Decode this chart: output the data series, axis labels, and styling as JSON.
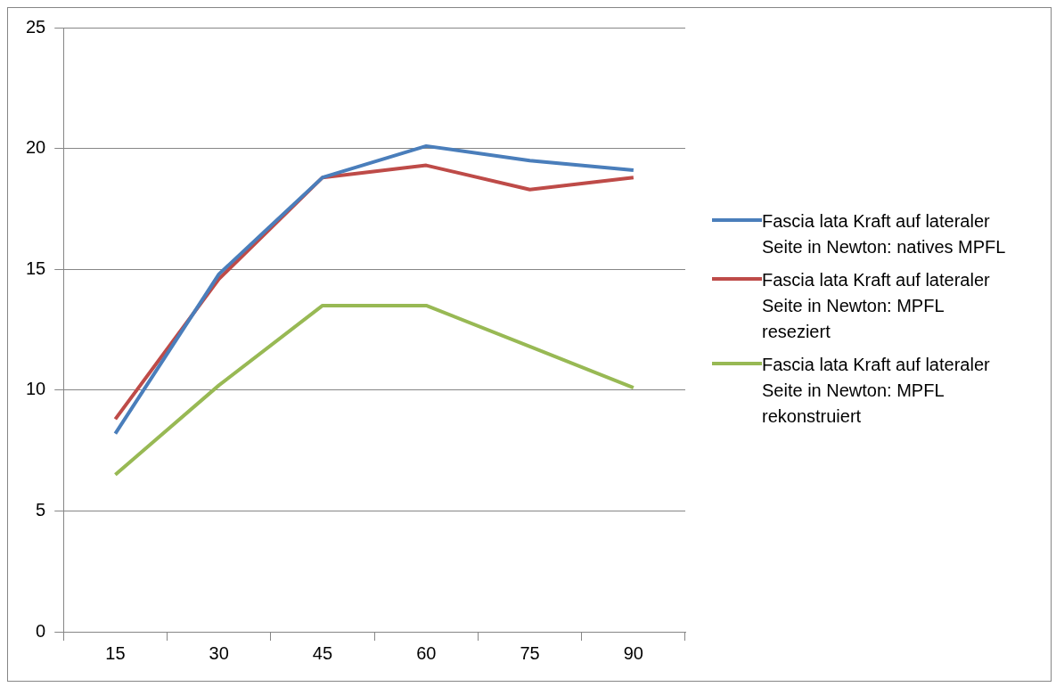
{
  "chart_data": {
    "type": "line",
    "categories": [
      "15",
      "30",
      "45",
      "60",
      "75",
      "90"
    ],
    "series": [
      {
        "name": "Fascia lata Kraft auf lateraler Seite in Newton: natives MPFL",
        "color": "#4a7ebb",
        "values": [
          8.2,
          14.8,
          18.8,
          20.1,
          19.5,
          19.1
        ]
      },
      {
        "name": "Fascia lata Kraft auf lateraler Seite in Newton: MPFL reseziert",
        "color": "#be4b48",
        "values": [
          8.8,
          14.6,
          18.8,
          19.3,
          18.3,
          18.8
        ]
      },
      {
        "name": "Fascia lata Kraft auf lateraler Seite in Newton: MPFL rekonstruiert",
        "color": "#98b954",
        "values": [
          6.5,
          10.2,
          13.5,
          13.5,
          11.8,
          10.1
        ]
      }
    ],
    "ylim": [
      0,
      25
    ],
    "yticks": [
      0,
      5,
      10,
      15,
      20,
      25
    ],
    "grid": "y",
    "legend": "right",
    "marker": "none",
    "line_style": "solid"
  }
}
